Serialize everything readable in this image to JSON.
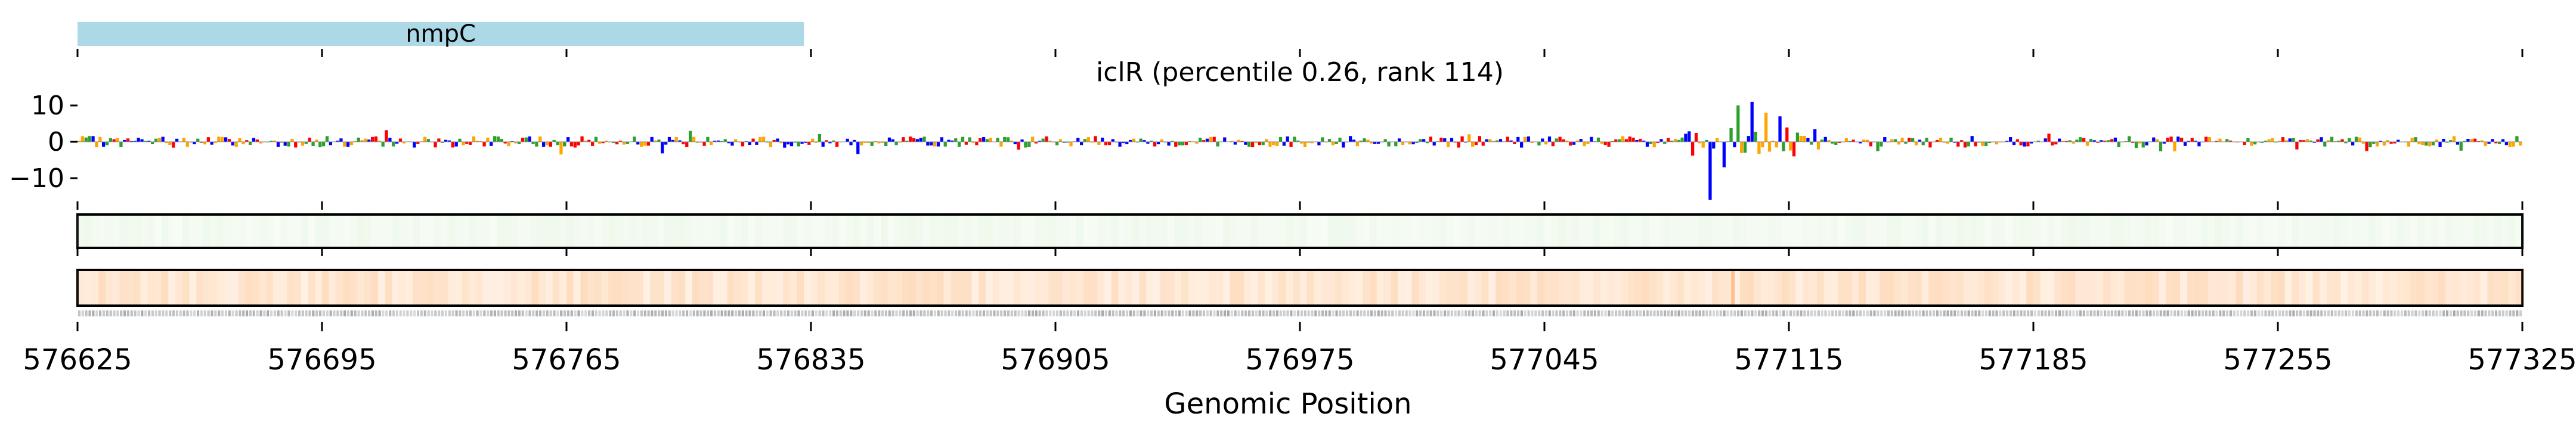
{
  "chart_data": [
    {
      "type": "bar",
      "role": "gene-annotation-track",
      "genes": [
        {
          "name": "nmpC",
          "start": 576625,
          "end": 576833,
          "color": "#add8e6"
        }
      ]
    },
    {
      "type": "bar",
      "role": "attribution-logo-track",
      "title": "iclR (percentile 0.26, rank 114)",
      "ylim": [
        -18,
        13
      ],
      "yticks": [
        10,
        0,
        -10
      ],
      "ytick_labels": [
        "10",
        "0",
        "−10"
      ],
      "base_colors": {
        "A": "#2ca02c",
        "C": "#0000ff",
        "G": "#ffa500",
        "T": "#ff0000"
      },
      "peaks": [
        {
          "x": 576800,
          "value": 3
        },
        {
          "x": 577092,
          "value": -16
        },
        {
          "x": 577096,
          "value": -7
        },
        {
          "x": 577100,
          "value": 10
        },
        {
          "x": 577104,
          "value": 11
        },
        {
          "x": 577108,
          "value": 8
        },
        {
          "x": 577112,
          "value": 7
        },
        {
          "x": 577116,
          "value": -4
        }
      ]
    },
    {
      "type": "heatmap",
      "role": "green-signal-track",
      "colormap": [
        "#f7fcf5",
        "#d9f0d3"
      ]
    },
    {
      "type": "heatmap",
      "role": "orange-signal-track",
      "colormap": [
        "#fff5eb",
        "#fdae6b"
      ],
      "hotspots": [
        {
          "x": 577099,
          "intensity": 0.7
        }
      ]
    },
    {
      "type": "line",
      "role": "genomic-axis",
      "xlim": [
        576625,
        577325
      ],
      "xticks": [
        576625,
        576695,
        576765,
        576835,
        576905,
        576975,
        577045,
        577115,
        577185,
        577255,
        577325
      ],
      "xtick_labels": [
        "576625",
        "576695",
        "576765",
        "576835",
        "576905",
        "576975",
        "577045",
        "577115",
        "577185",
        "577255",
        "577325"
      ],
      "xlabel": "Genomic Position"
    }
  ]
}
